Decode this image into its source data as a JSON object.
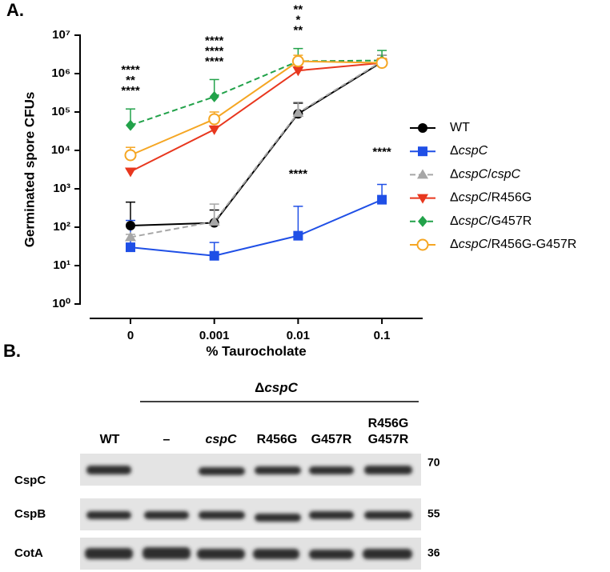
{
  "panel_a_label": "A.",
  "chart_data": {
    "type": "line",
    "ylabel": "Germinated spore CFUs",
    "xlabel": "% Taurocholate",
    "categories": [
      "0",
      "0.001",
      "0.01",
      "0.1"
    ],
    "log_y": true,
    "ylim": [
      1,
      10000000
    ],
    "yticks": [
      {
        "value": 1,
        "label": "10⁰"
      },
      {
        "value": 10,
        "label": "10¹"
      },
      {
        "value": 100,
        "label": "10²"
      },
      {
        "value": 1000,
        "label": "10³"
      },
      {
        "value": 10000,
        "label": "10⁴"
      },
      {
        "value": 100000,
        "label": "10⁵"
      },
      {
        "value": 1000000,
        "label": "10⁶"
      },
      {
        "value": 10000000,
        "label": "10⁷"
      }
    ],
    "legend": "right",
    "series": [
      {
        "name": "WT",
        "color": "#000000",
        "marker": "circle",
        "dashed": false,
        "values": [
          110,
          130,
          90000,
          2000000
        ],
        "errors": [
          340,
          150,
          80000,
          1000000
        ]
      },
      {
        "name": "ΔcspC",
        "color": "#1f4fe6",
        "marker": "square",
        "dashed": false,
        "values": [
          30,
          18,
          60,
          520
        ],
        "errors": [
          120,
          22,
          290,
          780
        ],
        "significance": [
          null,
          null,
          "****",
          "****"
        ]
      },
      {
        "name": "ΔcspC/cspC",
        "color": "#a6a6a6",
        "marker": "triangle-up",
        "dashed": true,
        "values": [
          55,
          140,
          95000,
          2100000
        ],
        "errors": [
          10,
          260,
          85000,
          900000
        ]
      },
      {
        "name": "ΔcspC/R456G",
        "color": "#e8371e",
        "marker": "triangle-down",
        "dashed": false,
        "values": [
          2800,
          35000,
          1200000,
          1900000
        ],
        "errors": [
          500,
          8000,
          300000,
          300000
        ],
        "significance": [
          "**",
          "****",
          "*",
          null
        ]
      },
      {
        "name": "ΔcspC/G457R",
        "color": "#22a24a",
        "marker": "diamond",
        "dashed": true,
        "values": [
          45000,
          250000,
          2100000,
          2200000
        ],
        "errors": [
          75000,
          450000,
          2400000,
          1800000
        ],
        "significance": [
          "****",
          "****",
          "**",
          null
        ]
      },
      {
        "name": "ΔcspC/R456G-G457R",
        "color": "#f5a623",
        "marker": "open-circle",
        "dashed": false,
        "values": [
          7500,
          65000,
          2100000,
          1900000
        ],
        "errors": [
          4500,
          35000,
          900000,
          600000
        ],
        "significance": [
          "****",
          "****",
          "**",
          null
        ]
      }
    ]
  },
  "panel_b": {
    "label": "B.",
    "group_label": "ΔcspC",
    "lanes": [
      "WT",
      "–",
      "cspC",
      "R456G",
      "G457R",
      "R456G G457R"
    ],
    "rows": [
      {
        "name": "CspC",
        "marker": 70
      },
      {
        "name": "CspB",
        "marker": 55
      },
      {
        "name": "CotA",
        "marker": 36
      }
    ]
  }
}
